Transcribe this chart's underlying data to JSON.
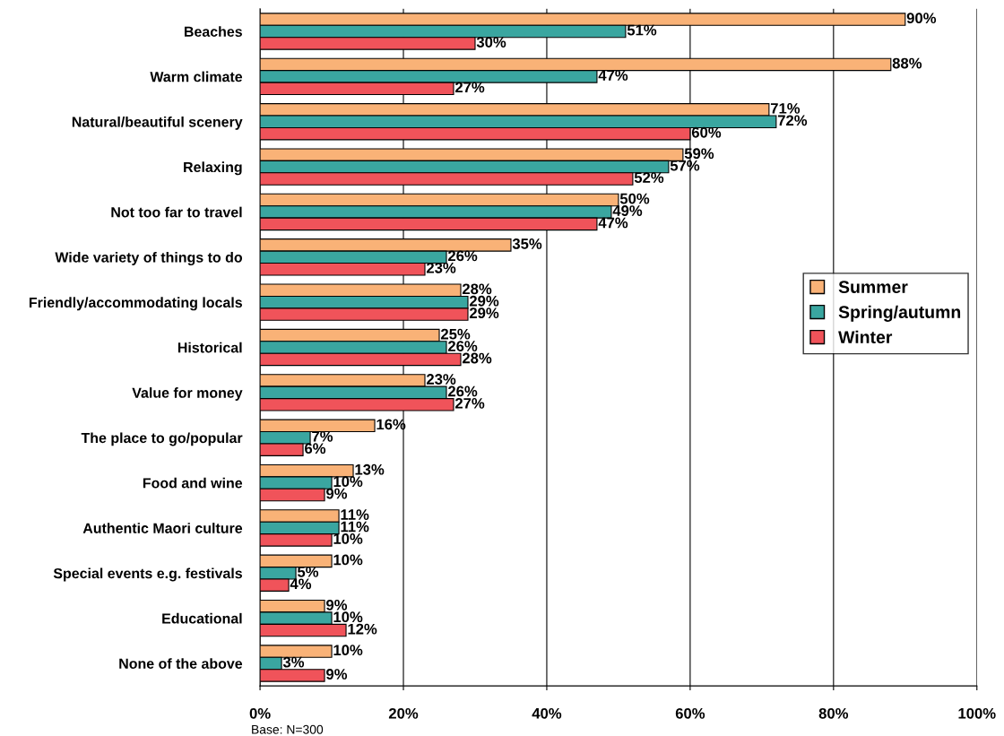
{
  "chart_data": {
    "type": "bar",
    "orientation": "horizontal",
    "categories": [
      "Beaches",
      "Warm climate",
      "Natural/beautiful scenery",
      "Relaxing",
      "Not too far to travel",
      "Wide variety of things to do",
      "Friendly/accommodating locals",
      "Historical",
      "Value for money",
      "The place to go/popular",
      "Food and wine",
      "Authentic Maori culture",
      "Special events e.g. festivals",
      "Educational",
      "None of the above"
    ],
    "series": [
      {
        "name": "Summer",
        "color": "#f9b277",
        "values": [
          90,
          88,
          71,
          59,
          50,
          35,
          28,
          25,
          23,
          16,
          13,
          11,
          10,
          9,
          10
        ],
        "value_labels": [
          "90%",
          "88%",
          "71%",
          "59%",
          "50%",
          "35%",
          "28%",
          "25%",
          "23%",
          "16%",
          "13%",
          "11%",
          "10%",
          "9%",
          "10%"
        ]
      },
      {
        "name": "Spring/autumn",
        "color": "#3aa6a0",
        "values": [
          51,
          47,
          72,
          57,
          49,
          26,
          29,
          26,
          26,
          7,
          10,
          11,
          5,
          10,
          3
        ],
        "value_labels": [
          "51%",
          "47%",
          "72%",
          "57%",
          "49%",
          "26%",
          "29%",
          "26%",
          "26%",
          "7%",
          "10%",
          "11%",
          "5%",
          "10%",
          "3%"
        ]
      },
      {
        "name": "Winter",
        "color": "#f0535a",
        "values": [
          30,
          27,
          60,
          52,
          47,
          23,
          29,
          28,
          27,
          6,
          9,
          10,
          4,
          12,
          9
        ],
        "value_labels": [
          "30%",
          "27%",
          "60%",
          "52%",
          "47%",
          "23%",
          "29%",
          "28%",
          "27%",
          "6%",
          "9%",
          "10%",
          "4%",
          "12%",
          "9%"
        ]
      }
    ],
    "xlim": [
      0,
      100
    ],
    "xticks": [
      {
        "value": 0,
        "label": "0%"
      },
      {
        "value": 20,
        "label": "20%"
      },
      {
        "value": 40,
        "label": "40%"
      },
      {
        "value": 60,
        "label": "60%"
      },
      {
        "value": 80,
        "label": "80%"
      },
      {
        "value": 100,
        "label": "100%"
      }
    ],
    "grid": "x",
    "legend": "right",
    "annotations": [
      "Base: N=300"
    ]
  }
}
